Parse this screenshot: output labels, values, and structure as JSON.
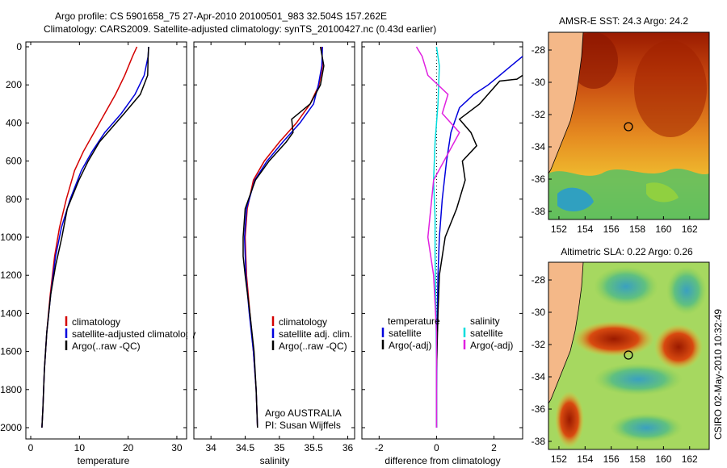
{
  "header": {
    "line1": "Argo profile: CS 5901658_75 27-Apr-2010 20100501_983 32.504S 157.262E",
    "line2": "Climatology: CARS2009. Satellite-adjusted climatology: synTS_20100427.nc (0.43d earlier)"
  },
  "panels": {
    "temperature": {
      "xlabel": "temperature",
      "xticks": [
        "0",
        "10",
        "20",
        "30"
      ],
      "legend": [
        {
          "label": "climatology",
          "color": "#d40000"
        },
        {
          "label": "satellite-adjusted climatology",
          "color": "#0000dd"
        },
        {
          "label": "Argo(..raw -QC)",
          "color": "#000000"
        }
      ]
    },
    "salinity": {
      "xlabel": "salinity",
      "xticks": [
        "34",
        "34.5",
        "35",
        "35.5",
        "36"
      ],
      "legend": [
        {
          "label": "climatology",
          "color": "#d40000"
        },
        {
          "label": "satellite adj. clim.",
          "color": "#0000dd"
        },
        {
          "label": "Argo(..raw -QC)",
          "color": "#000000"
        }
      ],
      "note1": "Argo AUSTRALIA",
      "note2": "PI: Susan Wijffels"
    },
    "difference": {
      "xlabel": "difference from climatology",
      "xticks": [
        "-2",
        "0",
        "2"
      ],
      "legend_temp_head": "temperature",
      "legend_sal_head": "salinity",
      "legend_temp": [
        {
          "label": "satellite",
          "color": "#0000dd"
        },
        {
          "label": "Argo(-adj)",
          "color": "#000000"
        }
      ],
      "legend_sal": [
        {
          "label": "satellite",
          "color": "#00dddd"
        },
        {
          "label": "Argo(-adj)",
          "color": "#e020e0"
        }
      ]
    },
    "yticks": [
      "0",
      "200",
      "400",
      "600",
      "800",
      "1000",
      "1200",
      "1400",
      "1600",
      "1800",
      "2000"
    ]
  },
  "maps": {
    "sst_title": "AMSR-E SST: 24.3 Argo: 24.2",
    "sla_title": "Altimetric SLA: 0.22 Argo: 0.26",
    "xticks": [
      "152",
      "154",
      "156",
      "158",
      "160",
      "162"
    ],
    "yticks": [
      "-28",
      "-30",
      "-32",
      "-34",
      "-36",
      "-38"
    ],
    "side_label": "CSIRO 02-May-2010 10:32:49"
  },
  "chart_data": [
    {
      "type": "line",
      "title": "",
      "xlabel": "temperature",
      "ylabel": "",
      "xlim": [
        -1,
        32
      ],
      "ylim": [
        2050,
        0
      ],
      "series": [
        {
          "name": "climatology",
          "color": "#d40000",
          "x": [
            21.8,
            20.9,
            19.3,
            17.4,
            15.2,
            13.0,
            10.8,
            9.0,
            7.3,
            5.9,
            4.9,
            4.0,
            3.3,
            2.8,
            2.5,
            2.3
          ],
          "y": [
            0,
            50,
            150,
            250,
            350,
            450,
            550,
            650,
            800,
            950,
            1100,
            1300,
            1500,
            1700,
            1900,
            2000
          ]
        },
        {
          "name": "satellite-adjusted climatology",
          "color": "#0000dd",
          "x": [
            24.2,
            24.1,
            23.3,
            21.4,
            18.6,
            15.2,
            12.6,
            10.4,
            8.1,
            6.3,
            5.1,
            4.1,
            3.3,
            2.8,
            2.5,
            2.3
          ],
          "y": [
            0,
            50,
            150,
            250,
            350,
            450,
            550,
            650,
            800,
            950,
            1100,
            1300,
            1500,
            1700,
            1900,
            2000
          ]
        },
        {
          "name": "Argo(..raw -QC)",
          "color": "#000000",
          "x": [
            24.2,
            24.1,
            24.0,
            22.5,
            19.2,
            15.8,
            14.1,
            11.8,
            9.9,
            7.5,
            6.4,
            5.1,
            4.1,
            3.3,
            2.8,
            2.5,
            2.3
          ],
          "y": [
            0,
            50,
            150,
            250,
            350,
            450,
            500,
            600,
            700,
            850,
            1000,
            1150,
            1300,
            1500,
            1700,
            1900,
            2000
          ]
        }
      ]
    },
    {
      "type": "line",
      "title": "",
      "xlabel": "salinity",
      "ylabel": "",
      "xlim": [
        33.75,
        36.1
      ],
      "ylim": [
        2050,
        0
      ],
      "series": [
        {
          "name": "climatology",
          "color": "#d40000",
          "x": [
            35.62,
            35.63,
            35.58,
            35.45,
            35.25,
            35.0,
            34.78,
            34.62,
            34.53,
            34.5,
            34.52,
            34.57,
            34.62,
            34.66,
            34.68
          ],
          "y": [
            0,
            100,
            200,
            300,
            400,
            500,
            600,
            700,
            850,
            1000,
            1200,
            1400,
            1600,
            1800,
            2000
          ]
        },
        {
          "name": "satellite adj. clim.",
          "color": "#0000dd",
          "x": [
            35.63,
            35.62,
            35.57,
            35.5,
            35.3,
            35.05,
            34.82,
            34.64,
            34.52,
            34.49,
            34.51,
            34.56,
            34.62,
            34.66,
            34.68
          ],
          "y": [
            0,
            100,
            200,
            300,
            400,
            500,
            600,
            700,
            850,
            1000,
            1200,
            1400,
            1600,
            1800,
            2000
          ]
        },
        {
          "name": "Argo(..raw -QC)",
          "color": "#000000",
          "x": [
            35.6,
            35.65,
            35.6,
            35.45,
            35.18,
            35.2,
            35.1,
            34.85,
            34.65,
            34.5,
            34.47,
            34.47,
            34.5,
            34.57,
            34.63,
            34.66,
            34.68
          ],
          "y": [
            0,
            100,
            200,
            300,
            380,
            450,
            500,
            600,
            700,
            850,
            1000,
            1100,
            1200,
            1400,
            1600,
            1800,
            2000
          ]
        }
      ]
    },
    {
      "type": "line",
      "title": "",
      "xlabel": "difference from climatology",
      "ylabel": "",
      "xlim": [
        -2.6,
        3.0
      ],
      "ylim": [
        2050,
        0
      ],
      "series": [
        {
          "name": "temperature satellite",
          "color": "#0000dd",
          "x": [
            3.0,
            2.6,
            2.2,
            1.8,
            1.3,
            0.8,
            0.5,
            0.35,
            0.2,
            0.1,
            0.05,
            0.02,
            0.0,
            0.0
          ],
          "y": [
            50,
            100,
            150,
            200,
            250,
            320,
            450,
            600,
            800,
            1000,
            1200,
            1500,
            1800,
            2000
          ]
        },
        {
          "name": "temperature Argo(-adj)",
          "color": "#000000",
          "x": [
            3.0,
            2.8,
            2.2,
            1.5,
            0.8,
            1.2,
            1.4,
            0.9,
            1.0,
            0.7,
            0.3,
            0.1,
            0.05,
            0.0,
            0.0
          ],
          "y": [
            150,
            170,
            180,
            300,
            380,
            450,
            520,
            600,
            700,
            850,
            1000,
            1200,
            1400,
            1700,
            2000
          ]
        },
        {
          "name": "salinity satellite",
          "color": "#00dddd",
          "x": [
            0.0,
            0.1,
            0.05,
            -0.05,
            -0.1,
            -0.05,
            -0.05,
            -0.02,
            0.0,
            0.0
          ],
          "y": [
            0,
            100,
            300,
            500,
            700,
            900,
            1100,
            1400,
            1700,
            2000
          ]
        },
        {
          "name": "salinity Argo(-adj)",
          "color": "#e020e0",
          "x": [
            -0.7,
            -0.5,
            -0.3,
            0.4,
            0.2,
            0.8,
            -0.1,
            -0.3,
            -0.1,
            0.0,
            0.0
          ],
          "y": [
            0,
            50,
            150,
            250,
            350,
            450,
            700,
            1000,
            1200,
            1500,
            2000
          ]
        }
      ]
    }
  ]
}
